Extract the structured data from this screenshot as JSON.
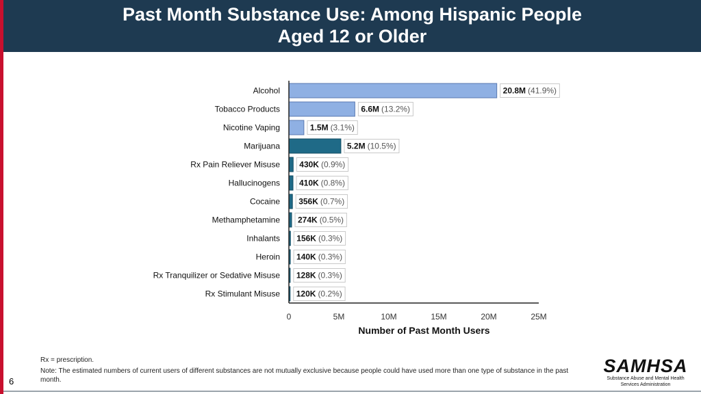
{
  "header": {
    "title_line1": "Past Month Substance Use: Among Hispanic People",
    "title_line2": "Aged 12 or Older"
  },
  "chart_data": {
    "type": "bar",
    "orientation": "horizontal",
    "title": "Past Month Substance Use: Among Hispanic People Aged 12 or Older",
    "xlabel": "Number of Past Month Users",
    "ylabel": "",
    "xlim": [
      0,
      25
    ],
    "x_unit": "millions",
    "x_ticks": [
      0,
      5,
      10,
      15,
      20,
      25
    ],
    "x_tick_labels": [
      "0",
      "5M",
      "10M",
      "15M",
      "20M",
      "25M"
    ],
    "grid": false,
    "colors": {
      "light": "#8fb0e3",
      "dark": "#1f6a87",
      "light_border": "#5878b0",
      "dark_border": "#144d63"
    },
    "bars": [
      {
        "label": "Alcohol",
        "value": 20.8,
        "count": "20.8M",
        "pct": "(41.9%)",
        "shade": "light"
      },
      {
        "label": "Tobacco Products",
        "value": 6.6,
        "count": "6.6M",
        "pct": "(13.2%)",
        "shade": "light"
      },
      {
        "label": "Nicotine Vaping",
        "value": 1.5,
        "count": "1.5M",
        "pct": "(3.1%)",
        "shade": "light"
      },
      {
        "label": "Marijuana",
        "value": 5.2,
        "count": "5.2M",
        "pct": "(10.5%)",
        "shade": "dark"
      },
      {
        "label": "Rx Pain Reliever Misuse",
        "value": 0.43,
        "count": "430K",
        "pct": "(0.9%)",
        "shade": "dark"
      },
      {
        "label": "Hallucinogens",
        "value": 0.41,
        "count": "410K",
        "pct": "(0.8%)",
        "shade": "dark"
      },
      {
        "label": "Cocaine",
        "value": 0.356,
        "count": "356K",
        "pct": "(0.7%)",
        "shade": "dark"
      },
      {
        "label": "Methamphetamine",
        "value": 0.274,
        "count": "274K",
        "pct": "(0.5%)",
        "shade": "dark"
      },
      {
        "label": "Inhalants",
        "value": 0.156,
        "count": "156K",
        "pct": "(0.3%)",
        "shade": "dark"
      },
      {
        "label": "Heroin",
        "value": 0.14,
        "count": "140K",
        "pct": "(0.3%)",
        "shade": "dark"
      },
      {
        "label": "Rx Tranquilizer or Sedative Misuse",
        "value": 0.128,
        "count": "128K",
        "pct": "(0.3%)",
        "shade": "dark"
      },
      {
        "label": "Rx Stimulant Misuse",
        "value": 0.12,
        "count": "120K",
        "pct": "(0.2%)",
        "shade": "dark"
      }
    ]
  },
  "footnotes": {
    "rx": "Rx = prescription.",
    "note": "Note: The estimated numbers of current users of different substances are not mutually exclusive because people could have used more than one type of substance in the past month."
  },
  "logo": {
    "wordmark": "SAMHSA",
    "line1": "Substance Abuse and Mental Health",
    "line2": "Services Administration"
  },
  "page_number": "6"
}
